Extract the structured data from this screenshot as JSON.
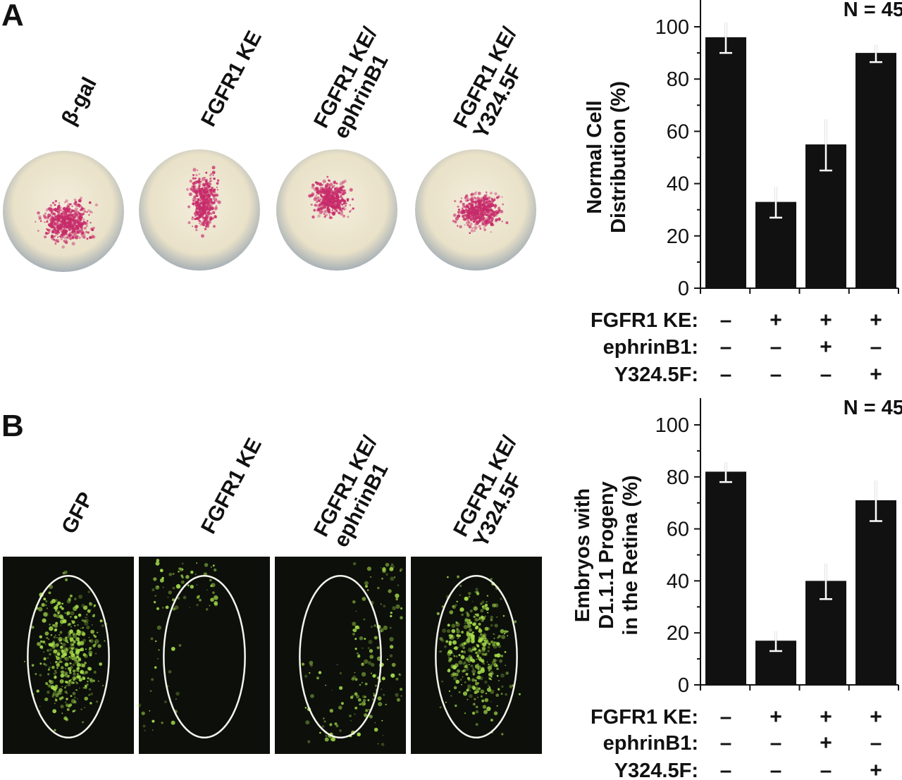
{
  "panel_a": {
    "letter": "A",
    "labels": [
      {
        "line1": "β-gal",
        "line2": ""
      },
      {
        "line1": "FGFR1 KE",
        "line2": ""
      },
      {
        "line1": "FGFR1 KE/",
        "line2": "ephrinB1"
      },
      {
        "line1": "FGFR1 KE/",
        "line2": "Y324.5F"
      }
    ],
    "colors": {
      "embryo": "#ece5cf",
      "stain": "#c72b6a",
      "rim": "#8a94a0"
    }
  },
  "panel_b": {
    "letter": "B",
    "labels": [
      {
        "line1": "GFP",
        "line2": ""
      },
      {
        "line1": "FGFR1 KE",
        "line2": ""
      },
      {
        "line1": "FGFR1 KE/",
        "line2": "ephrinB1"
      },
      {
        "line1": "FGFR1 KE/",
        "line2": "Y324.5F"
      }
    ],
    "colors": {
      "background": "#0c0f0a",
      "gfp": "#a8e04a",
      "outline": "#f4f4ec"
    }
  },
  "chart_data": [
    {
      "type": "bar",
      "n_label": "N = 45",
      "ylabel_lines": [
        "Normal Cell",
        "Distribution (%)"
      ],
      "ylim": [
        0,
        100
      ],
      "yticks": [
        "0",
        "20",
        "40",
        "60",
        "80",
        "100"
      ],
      "categories": [
        "1",
        "2",
        "3",
        "4"
      ],
      "values": [
        96,
        33,
        55,
        90
      ],
      "error": [
        6,
        6,
        10,
        3.5
      ],
      "condition_rows": [
        {
          "label": "FGFR1 KE:",
          "marks": [
            "–",
            "+",
            "+",
            "+"
          ]
        },
        {
          "label": "ephrinB1:",
          "marks": [
            "–",
            "–",
            "+",
            "–"
          ]
        },
        {
          "label": "Y324.5F:",
          "marks": [
            "–",
            "–",
            "–",
            "+"
          ]
        }
      ],
      "grid": false,
      "bar_color": "#111111"
    },
    {
      "type": "bar",
      "n_label": "N = 45",
      "ylabel_lines": [
        "Embryos with",
        "D1.1.1 Progeny",
        "in the Retina (%)"
      ],
      "ylim": [
        0,
        100
      ],
      "yticks": [
        "0",
        "20",
        "40",
        "60",
        "80",
        "100"
      ],
      "categories": [
        "1",
        "2",
        "3",
        "4"
      ],
      "values": [
        82,
        17,
        40,
        71
      ],
      "error": [
        4,
        4,
        7,
        8
      ],
      "condition_rows": [
        {
          "label": "FGFR1 KE:",
          "marks": [
            "–",
            "+",
            "+",
            "+"
          ]
        },
        {
          "label": "ephrinB1:",
          "marks": [
            "–",
            "–",
            "+",
            "–"
          ]
        },
        {
          "label": "Y324.5F:",
          "marks": [
            "–",
            "–",
            "–",
            "+"
          ]
        }
      ],
      "grid": false,
      "bar_color": "#111111"
    }
  ]
}
